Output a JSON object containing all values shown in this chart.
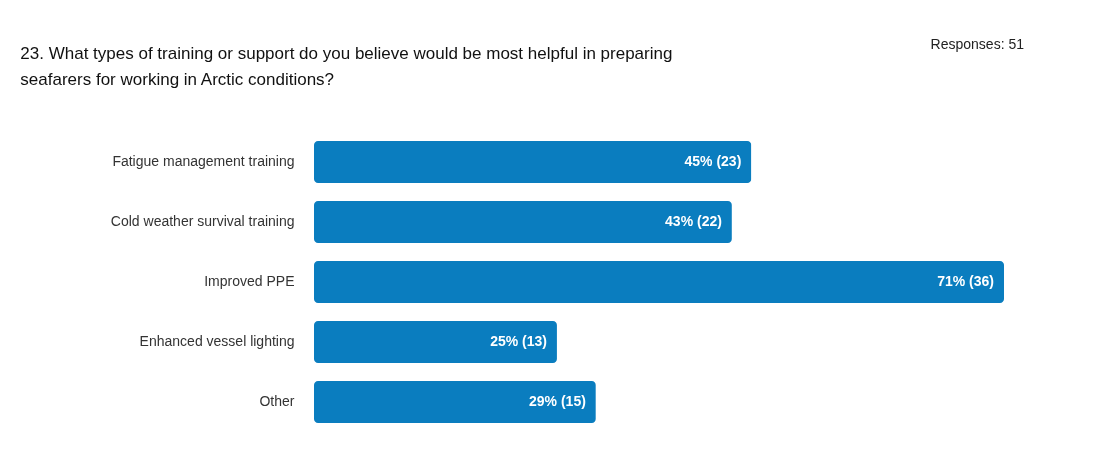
{
  "chart_data": {
    "type": "bar",
    "orientation": "horizontal",
    "title": "23. What types of training or support do you believe would be most helpful in preparing seafarers for working in Arctic conditions?",
    "annotations": [
      "Responses: 51"
    ],
    "categories": [
      "Fatigue management training",
      "Cold weather survival training",
      "Improved PPE",
      "Enhanced vessel lighting",
      "Other"
    ],
    "values": [
      45,
      43,
      71,
      25,
      29
    ],
    "value_labels": [
      "45% (23)",
      "43% (22)",
      "71% (36)",
      "25% (13)",
      "29% (15)"
    ],
    "color": "#0a7dbf"
  }
}
